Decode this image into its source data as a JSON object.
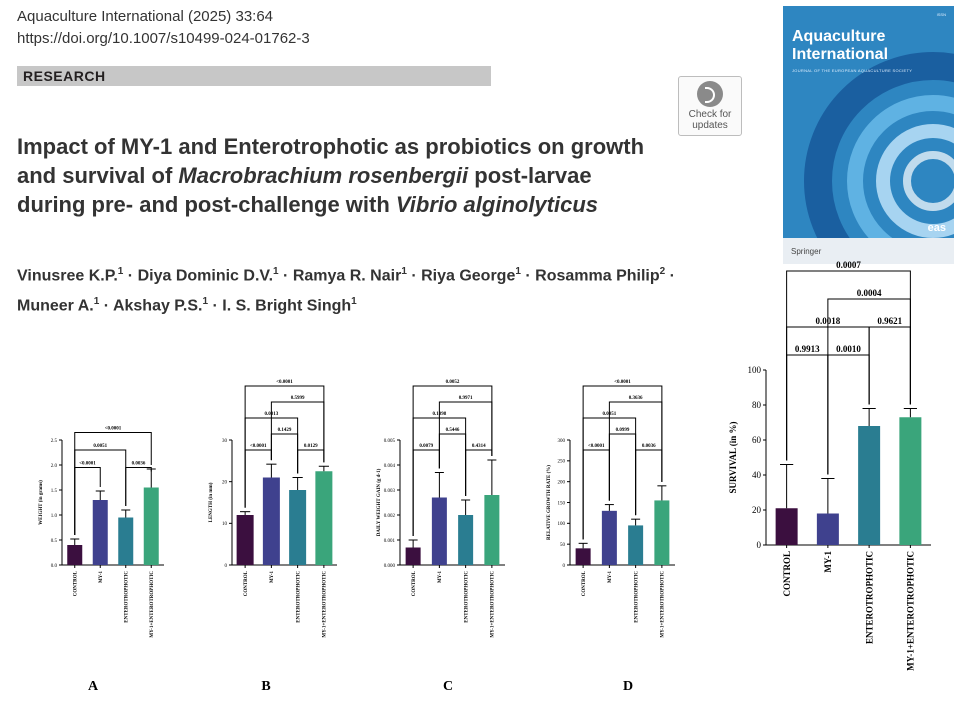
{
  "header": {
    "journal": "Aquaculture International (2025) 33:64",
    "doi": "https://doi.org/10.1007/s10499-024-01762-3",
    "section": "RESEARCH",
    "check_updates": [
      "Check for",
      "updates"
    ]
  },
  "title": {
    "line1": "Impact of MY-1 and Enterotrophotic as probiotics on growth",
    "line2a": "and survival of ",
    "line2b": "Macrobrachium rosenbergii",
    "line2c": " post-larvae",
    "line3a": "during pre- and post-challenge with ",
    "line3b": "Vibrio alginolyticus"
  },
  "authors": {
    "a1": "Vinusree K.P.",
    "a1s": "1",
    "a2": "Diya Dominic D.V.",
    "a2s": "1",
    "a3": "Ramya R. Nair",
    "a3s": "1",
    "a4": "Riya George",
    "a4s": "1",
    "a5": "Rosamma Philip",
    "a5s": "2",
    "a6": "Muneer A.",
    "a6s": "1",
    "a7": "Akshay P.S.",
    "a7s": "1",
    "a8": "I. S. Bright Singh",
    "a8s": "1",
    "sep": " · "
  },
  "cover": {
    "title1": "Aquaculture",
    "title2": "International",
    "subtitle": "JOURNAL OF THE EUROPEAN AQUACULTURE SOCIETY",
    "publisher": "Springer",
    "society": "eas",
    "colors": {
      "bg": "#2e86c1",
      "ring1": "#1a5fa0",
      "ring2": "#5fb2e3",
      "ring3": "#a7d4f1"
    }
  },
  "colors": {
    "control": "#3b0f3f",
    "my1": "#3f418e",
    "entero": "#2a7d91",
    "combo": "#3aa57b"
  },
  "chart_data": [
    {
      "panel": "A",
      "type": "bar",
      "categories": [
        "CONTROL",
        "MY-1",
        "ENTEROTROPHOTIC",
        "MY-1+ENTEROTROPHOTIC"
      ],
      "values": [
        0.4,
        1.3,
        0.95,
        1.55
      ],
      "errors": [
        0.12,
        0.18,
        0.15,
        0.37
      ],
      "ylabel": "WEIGHT (in grams)",
      "ylim": [
        0,
        2.5
      ],
      "yticks": [
        "0.0",
        "0.5",
        "1.0",
        "1.5",
        "2.0",
        "2.5"
      ],
      "pvalues": [
        "<0.0001",
        "0.0051",
        "0.0036",
        "<0.0001"
      ]
    },
    {
      "panel": "B",
      "type": "bar",
      "categories": [
        "CONTROL",
        "MY-1",
        "ENTEROTROPHOTIC",
        "MY-1+ENTEROTROPHOTIC"
      ],
      "values": [
        12,
        21,
        18,
        22.5
      ],
      "errors": [
        0.8,
        3.2,
        3.0,
        1.2
      ],
      "ylabel": "LENGTH (in mm)",
      "ylim": [
        0,
        30
      ],
      "yticks": [
        "0",
        "10",
        "20",
        "30"
      ],
      "pvalues": [
        "<0.0001",
        "0.1429",
        "0.0129",
        "0.0013",
        "0.5999",
        "<0.0001"
      ]
    },
    {
      "panel": "C",
      "type": "bar",
      "categories": [
        "CONTROL",
        "MY-1",
        "ENTEROTROPHOTIC",
        "MY-1+ENTEROTROPHOTIC"
      ],
      "values": [
        0.0007,
        0.0027,
        0.002,
        0.0028
      ],
      "errors": [
        0.0003,
        0.001,
        0.0006,
        0.0014
      ],
      "ylabel": "DAILY WEIGHT GAIN (g d-1)",
      "ylim": [
        0,
        0.005
      ],
      "yticks": [
        "0.000",
        "0.001",
        "0.002",
        "0.003",
        "0.004",
        "0.005"
      ],
      "pvalues": [
        "0.0079",
        "0.5446",
        "0.1098",
        "0.4314",
        "0.9971",
        "0.0052"
      ]
    },
    {
      "panel": "D",
      "type": "bar",
      "categories": [
        "CONTROL",
        "MY-1",
        "ENTEROTROPHOTIC",
        "MY-1+ENTEROTROPHOTIC"
      ],
      "values": [
        40,
        130,
        95,
        155
      ],
      "errors": [
        12,
        15,
        15,
        35
      ],
      "ylabel": "RELATIVE GROWTH RATE (%)",
      "ylim": [
        0,
        300
      ],
      "yticks": [
        "0",
        "50",
        "100",
        "150",
        "200",
        "250",
        "300"
      ],
      "pvalues": [
        "<0.0001",
        "0.0999",
        "0.0036",
        "0.0051",
        "0.3636",
        "<0.0001"
      ]
    },
    {
      "panel": "E",
      "type": "bar",
      "categories": [
        "CONTROL",
        "MY-1",
        "ENTEROTROPHOTIC",
        "MY-1+ENTEROTROPHOTIC"
      ],
      "values": [
        21,
        18,
        68,
        73
      ],
      "errors": [
        25,
        20,
        10,
        5
      ],
      "ylabel": "SURVIVAL (in %)",
      "ylim": [
        0,
        100
      ],
      "yticks": [
        "0",
        "20",
        "40",
        "60",
        "80",
        "100"
      ],
      "pvalues": [
        "0.9913",
        "0.0010",
        "0.0018",
        "0.9621",
        "0.0004",
        "0.0007"
      ]
    }
  ]
}
